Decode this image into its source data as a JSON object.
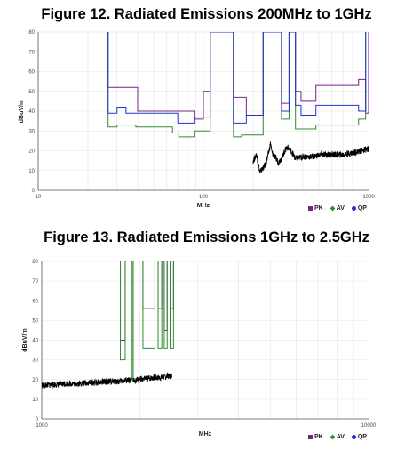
{
  "chart_data": [
    {
      "type": "line",
      "title": "Figure 12. Radiated Emissions 200MHz to 1GHz",
      "xlabel": "MHz",
      "ylabel": "dBuV/m",
      "x_scale": "log",
      "xlim": [
        10,
        1000
      ],
      "ylim": [
        0,
        80
      ],
      "x_ticks": [
        "10",
        "100",
        "1000"
      ],
      "y_ticks": [
        "0",
        "10",
        "20",
        "30",
        "40",
        "50",
        "60",
        "70",
        "80"
      ],
      "grid": true,
      "legend_position": "bottom-right",
      "series": [
        {
          "name": "PK",
          "color": "#7a1f8c",
          "points": [
            [
              26.5,
              80
            ],
            [
              26.5,
              52
            ],
            [
              40,
              52
            ],
            [
              40,
              40
            ],
            [
              88,
              40
            ],
            [
              88,
              36
            ],
            [
              100,
              36
            ],
            [
              100,
              50
            ],
            [
              110,
              50
            ],
            [
              110,
              80
            ],
            [
              152,
              80
            ],
            [
              152,
              47
            ],
            [
              182,
              47
            ],
            [
              182,
              38
            ],
            [
              230,
              38
            ],
            [
              230,
              80
            ],
            [
              297,
              80
            ],
            [
              297,
              44
            ],
            [
              330,
              44
            ],
            [
              330,
              80
            ],
            [
              361,
              80
            ],
            [
              361,
              50
            ],
            [
              390,
              50
            ],
            [
              390,
              45
            ],
            [
              480,
              45
            ],
            [
              480,
              53
            ],
            [
              870,
              53
            ],
            [
              870,
              56
            ],
            [
              960,
              56
            ],
            [
              960,
              39
            ],
            [
              1000,
              39
            ],
            [
              1000,
              80
            ]
          ]
        },
        {
          "name": "AV",
          "color": "#2e8b2e",
          "points": [
            [
              26.5,
              80
            ],
            [
              26.5,
              32
            ],
            [
              30,
              32
            ],
            [
              30,
              33
            ],
            [
              39,
              33
            ],
            [
              39,
              32
            ],
            [
              65,
              32
            ],
            [
              65,
              29
            ],
            [
              71,
              29
            ],
            [
              71,
              27
            ],
            [
              88,
              27
            ],
            [
              88,
              30
            ],
            [
              110,
              30
            ],
            [
              110,
              80
            ],
            [
              152,
              80
            ],
            [
              152,
              27
            ],
            [
              170,
              27
            ],
            [
              170,
              28
            ],
            [
              230,
              28
            ],
            [
              230,
              80
            ],
            [
              297,
              80
            ],
            [
              297,
              36
            ],
            [
              330,
              36
            ],
            [
              330,
              80
            ],
            [
              361,
              80
            ],
            [
              361,
              31
            ],
            [
              480,
              31
            ],
            [
              480,
              33
            ],
            [
              870,
              33
            ],
            [
              870,
              36
            ],
            [
              960,
              36
            ],
            [
              960,
              80
            ]
          ]
        },
        {
          "name": "QP",
          "color": "#2233cc",
          "points": [
            [
              26.5,
              80
            ],
            [
              26.5,
              39
            ],
            [
              30,
              39
            ],
            [
              30,
              42
            ],
            [
              34,
              42
            ],
            [
              34,
              39
            ],
            [
              70,
              39
            ],
            [
              70,
              34
            ],
            [
              88,
              34
            ],
            [
              88,
              37
            ],
            [
              110,
              37
            ],
            [
              110,
              80
            ],
            [
              152,
              80
            ],
            [
              152,
              34
            ],
            [
              182,
              34
            ],
            [
              182,
              38
            ],
            [
              230,
              38
            ],
            [
              230,
              80
            ],
            [
              297,
              80
            ],
            [
              297,
              40
            ],
            [
              330,
              40
            ],
            [
              330,
              80
            ],
            [
              361,
              80
            ],
            [
              361,
              43
            ],
            [
              390,
              43
            ],
            [
              390,
              38
            ],
            [
              480,
              38
            ],
            [
              480,
              43
            ],
            [
              870,
              43
            ],
            [
              870,
              40
            ],
            [
              960,
              40
            ],
            [
              960,
              80
            ]
          ]
        }
      ],
      "measured_trace": {
        "color": "#000000",
        "x_range": [
          200,
          1000
        ],
        "points": [
          [
            200,
            15
          ],
          [
            210,
            18
          ],
          [
            220,
            9
          ],
          [
            228,
            11
          ],
          [
            238,
            13
          ],
          [
            250,
            20
          ],
          [
            255,
            24
          ],
          [
            260,
            19
          ],
          [
            270,
            17
          ],
          [
            285,
            14
          ],
          [
            300,
            17
          ],
          [
            320,
            22
          ],
          [
            340,
            20
          ],
          [
            360,
            16
          ],
          [
            400,
            17
          ],
          [
            450,
            17
          ],
          [
            520,
            18
          ],
          [
            600,
            18
          ],
          [
            700,
            18
          ],
          [
            800,
            19
          ],
          [
            900,
            20
          ],
          [
            1000,
            21
          ]
        ]
      }
    },
    {
      "type": "line",
      "title": "Figure 13. Radiated Emissions 1GHz to 2.5GHz",
      "xlabel": "MHz",
      "ylabel": "dBuV/m",
      "x_scale": "log",
      "xlim": [
        1000,
        10000
      ],
      "ylim": [
        0,
        80
      ],
      "x_ticks": [
        "1000",
        "10000"
      ],
      "y_ticks": [
        "0",
        "10",
        "20",
        "30",
        "40",
        "50",
        "60",
        "70",
        "80"
      ],
      "grid": true,
      "legend_position": "bottom-right",
      "series": [
        {
          "name": "PK",
          "color": "#7a1f8c",
          "points": [
            [
              1740,
              84
            ],
            [
              1740,
              40
            ],
            [
              1800,
              40
            ],
            [
              1800,
              84
            ],
            [
              2040,
              84
            ],
            [
              2040,
              56
            ],
            [
              2220,
              56
            ],
            [
              2220,
              84
            ],
            [
              2270,
              84
            ],
            [
              2270,
              56
            ],
            [
              2330,
              56
            ],
            [
              2330,
              84
            ],
            [
              2370,
              84
            ],
            [
              2370,
              45
            ],
            [
              2420,
              45
            ],
            [
              2420,
              84
            ],
            [
              2470,
              84
            ],
            [
              2470,
              56
            ],
            [
              2530,
              56
            ],
            [
              2530,
              84
            ]
          ]
        },
        {
          "name": "AV",
          "color": "#2e8b2e",
          "points": [
            [
              1740,
              84
            ],
            [
              1740,
              30
            ],
            [
              1800,
              30
            ],
            [
              1800,
              84
            ],
            [
              1890,
              84
            ],
            [
              1890,
              20
            ],
            [
              1905,
              20
            ],
            [
              1905,
              84
            ],
            [
              2040,
              84
            ],
            [
              2040,
              36
            ],
            [
              2220,
              36
            ],
            [
              2220,
              84
            ],
            [
              2270,
              84
            ],
            [
              2270,
              36
            ],
            [
              2330,
              36
            ],
            [
              2330,
              84
            ],
            [
              2370,
              84
            ],
            [
              2370,
              36
            ],
            [
              2420,
              36
            ],
            [
              2420,
              84
            ],
            [
              2470,
              84
            ],
            [
              2470,
              36
            ],
            [
              2530,
              36
            ],
            [
              2530,
              84
            ]
          ]
        }
      ],
      "measured_trace": {
        "color": "#000000",
        "x_range": [
          1000,
          2500
        ],
        "points": [
          [
            1000,
            17
          ],
          [
            1100,
            17.5
          ],
          [
            1200,
            18
          ],
          [
            1300,
            18
          ],
          [
            1400,
            18.5
          ],
          [
            1500,
            18.5
          ],
          [
            1600,
            19
          ],
          [
            1700,
            19
          ],
          [
            1800,
            19.5
          ],
          [
            1900,
            19.5
          ],
          [
            2000,
            20
          ],
          [
            2100,
            20.5
          ],
          [
            2200,
            21
          ],
          [
            2300,
            21
          ],
          [
            2400,
            21.5
          ],
          [
            2500,
            22
          ]
        ]
      }
    }
  ],
  "legend": [
    {
      "label": "PK",
      "color": "#7a1f8c",
      "marker": "square"
    },
    {
      "label": "AV",
      "color": "#2e8b2e",
      "marker": "diamond"
    },
    {
      "label": "QP",
      "color": "#2233cc",
      "marker": "circle"
    }
  ]
}
